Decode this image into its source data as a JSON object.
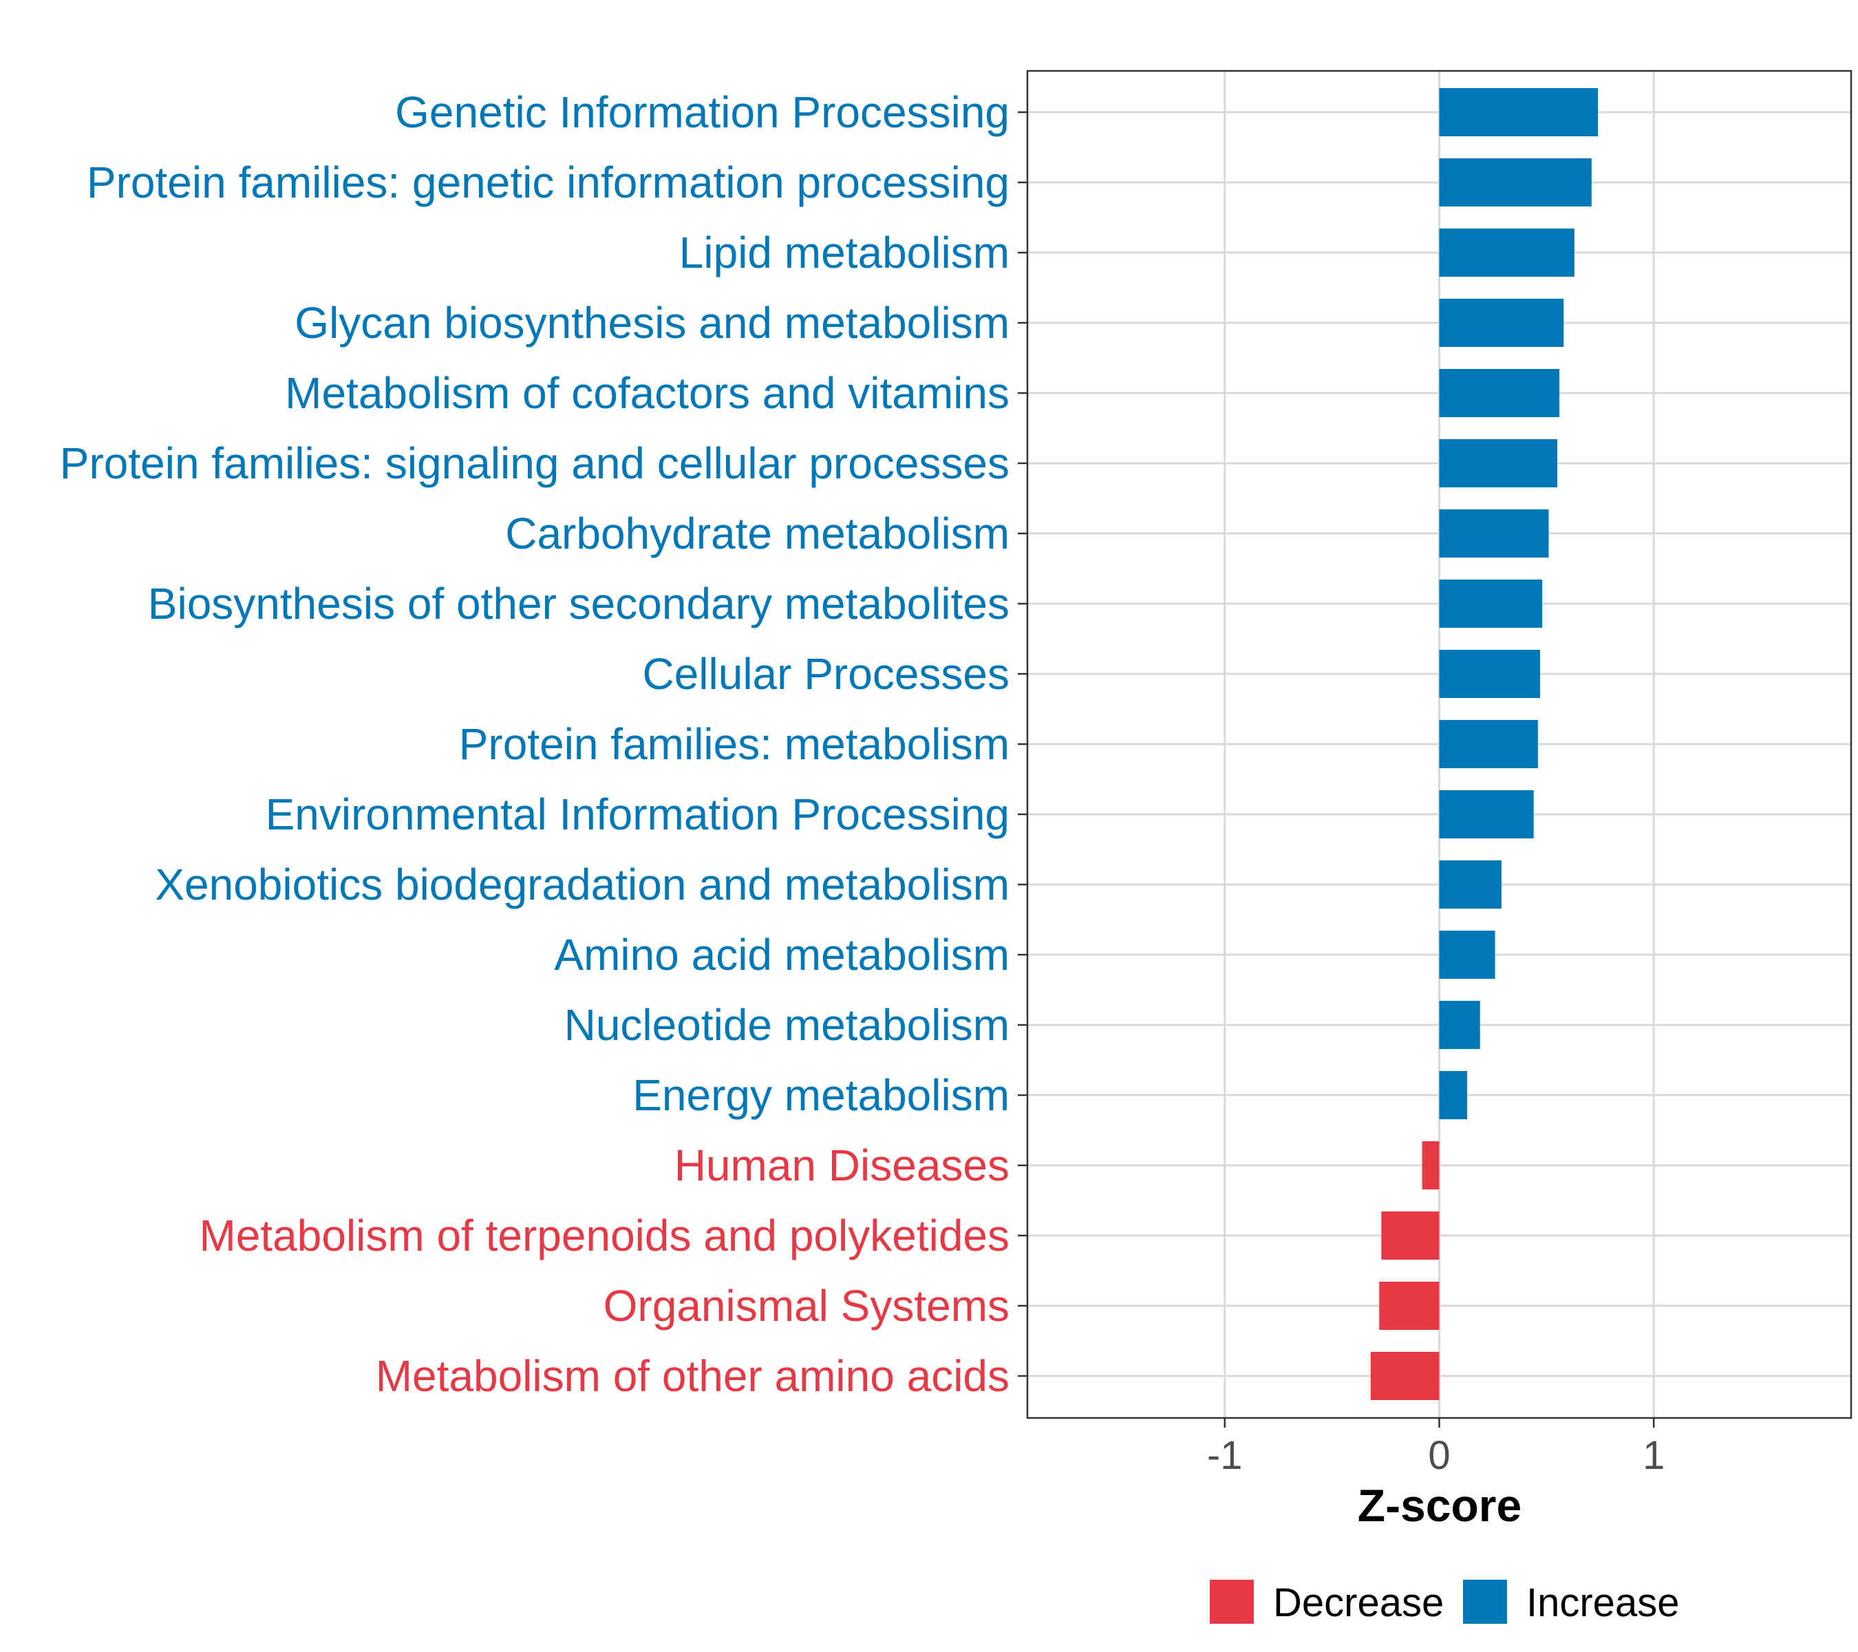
{
  "chart_data": {
    "type": "bar",
    "orientation": "horizontal",
    "categories": [
      "Genetic Information Processing",
      "Protein families: genetic information processing",
      "Lipid metabolism",
      "Glycan biosynthesis and metabolism",
      "Metabolism of cofactors and vitamins",
      "Protein families: signaling and cellular processes",
      "Carbohydrate metabolism",
      "Biosynthesis of other secondary metabolites",
      "Cellular Processes",
      "Protein families: metabolism",
      "Environmental Information Processing",
      "Xenobiotics biodegradation and metabolism",
      "Amino acid metabolism",
      "Nucleotide metabolism",
      "Energy metabolism",
      "Human Diseases",
      "Metabolism of terpenoids and polyketides",
      "Organismal Systems",
      "Metabolism of other amino acids"
    ],
    "values": [
      0.74,
      0.71,
      0.63,
      0.58,
      0.56,
      0.55,
      0.51,
      0.48,
      0.47,
      0.46,
      0.44,
      0.29,
      0.26,
      0.19,
      0.13,
      -0.08,
      -0.27,
      -0.28,
      -0.32
    ],
    "groups": [
      "Increase",
      "Increase",
      "Increase",
      "Increase",
      "Increase",
      "Increase",
      "Increase",
      "Increase",
      "Increase",
      "Increase",
      "Increase",
      "Increase",
      "Increase",
      "Increase",
      "Increase",
      "Decrease",
      "Decrease",
      "Decrease",
      "Decrease"
    ],
    "xlabel": "Z-score",
    "ylabel": "",
    "xlim": [
      -1.92,
      1.92
    ],
    "xticks": [
      -1,
      0,
      1
    ],
    "xtick_labels": [
      "-1",
      "0",
      "1"
    ],
    "grid": true,
    "legend": {
      "placement": "bottom",
      "entries": [
        {
          "label": "Decrease",
          "color": "#E63946"
        },
        {
          "label": "Increase",
          "color": "#0077B6"
        }
      ]
    },
    "colors": {
      "Increase": "#0077B6",
      "Decrease": "#E63946"
    }
  }
}
